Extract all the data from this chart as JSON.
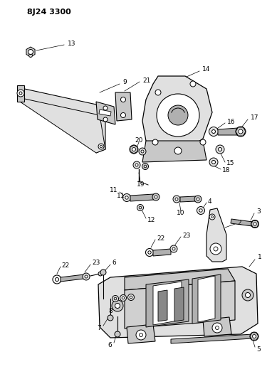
{
  "title": "8J24 3300",
  "bg_color": "#ffffff",
  "lc": "#000000",
  "lw": 0.8,
  "gray1": "#c8c8c8",
  "gray2": "#b0b0b0",
  "gray3": "#e0e0e0",
  "gray4": "#d0d0d0",
  "gray_dark": "#888888"
}
